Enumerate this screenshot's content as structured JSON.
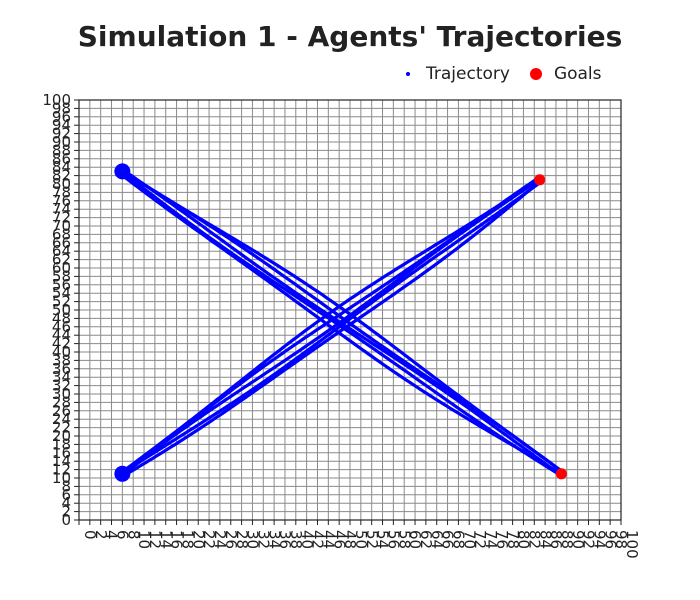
{
  "chart_data": {
    "type": "scatter",
    "title": "Simulation 1 - Agents' Trajectories",
    "xlabel": "",
    "ylabel": "",
    "xlim": [
      0,
      100
    ],
    "ylim": [
      0,
      100
    ],
    "x_tick_step": 2,
    "y_tick_step": 2,
    "grid": true,
    "legend_placement": "top-right",
    "series": [
      {
        "name": "Trajectory",
        "color": "#0000ff",
        "paths": [
          {
            "from": [
              8,
              11
            ],
            "to": [
              85,
              81
            ]
          },
          {
            "from": [
              8,
              83
            ],
            "to": [
              89,
              11
            ]
          }
        ],
        "strands": 5
      },
      {
        "name": "Goals",
        "color": "#ff0000",
        "points": [
          [
            85,
            81
          ],
          [
            89,
            11
          ]
        ]
      }
    ]
  }
}
